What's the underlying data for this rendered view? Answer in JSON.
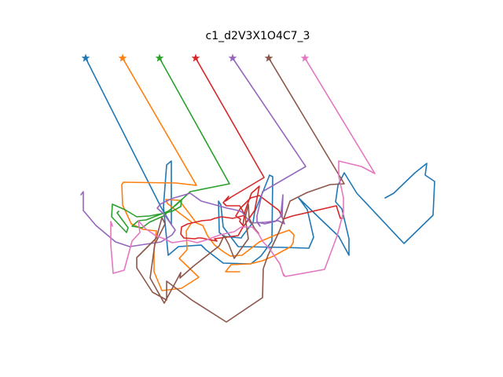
{
  "chart_data": {
    "type": "line",
    "title": "c1_d2V3X1O4C7_3",
    "xlabel": "",
    "ylabel": "",
    "axes_visible": false,
    "grid": false,
    "legend": "none",
    "start_marker": "star",
    "series": [
      {
        "color": "#1f77b4",
        "points": [
          [
            109,
            74
          ],
          [
            205,
            264
          ],
          [
            218,
            286
          ],
          [
            218,
            205
          ],
          [
            212,
            210
          ],
          [
            208,
            263
          ],
          [
            214,
            325
          ],
          [
            227,
            314
          ],
          [
            256,
            312
          ],
          [
            262,
            318
          ],
          [
            284,
            335
          ],
          [
            319,
            336
          ],
          [
            332,
            326
          ],
          [
            335,
            322
          ],
          [
            346,
            307
          ],
          [
            347,
            225
          ],
          [
            343,
            223
          ],
          [
            333,
            248
          ],
          [
            324,
            270
          ],
          [
            322,
            283
          ],
          [
            308,
            301
          ],
          [
            307,
            303
          ],
          [
            285,
            301
          ],
          [
            279,
            296
          ],
          [
            278,
            256
          ],
          [
            281,
            261
          ],
          [
            284,
            289
          ],
          [
            303,
            314
          ],
          [
            361,
            315
          ],
          [
            393,
            316
          ],
          [
            399,
            302
          ],
          [
            391,
            267
          ],
          [
            380,
            252
          ],
          [
            383,
            255
          ],
          [
            410,
            281
          ],
          [
            431,
            301
          ],
          [
            444,
            325
          ],
          [
            444,
            304
          ],
          [
            435,
            266
          ],
          [
            427,
            257
          ],
          [
            430,
            236
          ],
          [
            438,
            220
          ],
          [
            454,
            246
          ],
          [
            514,
            310
          ],
          [
            551,
            274
          ],
          [
            553,
            231
          ],
          [
            541,
            223
          ],
          [
            543,
            208
          ],
          [
            528,
            220
          ],
          [
            501,
            246
          ],
          [
            490,
            252
          ]
        ]
      },
      {
        "color": "#ff7f0e",
        "points": [
          [
            156,
            74
          ],
          [
            250,
            236
          ],
          [
            224,
            233
          ],
          [
            157,
            232
          ],
          [
            155,
            235
          ],
          [
            156,
            261
          ],
          [
            167,
            285
          ],
          [
            182,
            292
          ],
          [
            199,
            294
          ],
          [
            196,
            318
          ],
          [
            196,
            346
          ],
          [
            206,
            370
          ],
          [
            231,
            367
          ],
          [
            253,
            353
          ],
          [
            228,
            329
          ],
          [
            238,
            318
          ],
          [
            237,
            294
          ],
          [
            244,
            283
          ],
          [
            228,
            271
          ],
          [
            213,
            259
          ],
          [
            211,
            254
          ],
          [
            228,
            255
          ],
          [
            250,
            284
          ],
          [
            258,
            287
          ],
          [
            264,
            300
          ],
          [
            273,
            312
          ],
          [
            285,
            321
          ],
          [
            293,
            326
          ],
          [
            308,
            325
          ],
          [
            330,
            308
          ],
          [
            351,
            299
          ],
          [
            368,
            293
          ],
          [
            374,
            299
          ],
          [
            373,
            309
          ],
          [
            370,
            314
          ],
          [
            348,
            326
          ],
          [
            334,
            332
          ],
          [
            318,
            336
          ],
          [
            294,
            337
          ],
          [
            287,
            346
          ],
          [
            305,
            346
          ]
        ]
      },
      {
        "color": "#2ca02c",
        "points": [
          [
            203,
            74
          ],
          [
            292,
            234
          ],
          [
            242,
            244
          ],
          [
            224,
            261
          ],
          [
            214,
            269
          ],
          [
            186,
            280
          ],
          [
            176,
            281
          ],
          [
            168,
            288
          ],
          [
            181,
            290
          ],
          [
            190,
            283
          ],
          [
            208,
            275
          ],
          [
            231,
            254
          ],
          [
            230,
            263
          ],
          [
            219,
            269
          ],
          [
            206,
            272
          ],
          [
            190,
            275
          ],
          [
            174,
            276
          ],
          [
            159,
            267
          ],
          [
            143,
            260
          ],
          [
            142,
            276
          ],
          [
            161,
            296
          ],
          [
            163,
            290
          ],
          [
            149,
            271
          ],
          [
            151,
            269
          ]
        ]
      },
      {
        "color": "#d62728",
        "points": [
          [
            249,
            74
          ],
          [
            336,
            226
          ],
          [
            294,
            251
          ],
          [
            287,
            256
          ],
          [
            291,
            250
          ],
          [
            284,
            258
          ],
          [
            288,
            262
          ],
          [
            305,
            262
          ],
          [
            312,
            274
          ],
          [
            296,
            278
          ],
          [
            282,
            276
          ],
          [
            273,
            278
          ],
          [
            268,
            280
          ],
          [
            257,
            281
          ],
          [
            239,
            285
          ],
          [
            231,
            289
          ],
          [
            230,
            298
          ],
          [
            234,
            303
          ],
          [
            248,
            304
          ],
          [
            252,
            303
          ],
          [
            256,
            303
          ],
          [
            276,
            307
          ],
          [
            273,
            304
          ],
          [
            303,
            300
          ],
          [
            308,
            291
          ],
          [
            324,
            268
          ],
          [
            330,
            237
          ],
          [
            320,
            246
          ],
          [
            312,
            268
          ],
          [
            309,
            287
          ],
          [
            305,
            282
          ],
          [
            306,
            279
          ],
          [
            300,
            275
          ],
          [
            306,
            265
          ],
          [
            319,
            252
          ],
          [
            330,
            249
          ],
          [
            355,
            268
          ],
          [
            360,
            279
          ],
          [
            372,
            275
          ],
          [
            428,
            262
          ],
          [
            433,
            278
          ],
          [
            436,
            278
          ]
        ]
      },
      {
        "color": "#9467bd",
        "points": [
          [
            296,
            74
          ],
          [
            389,
            212
          ],
          [
            334,
            244
          ],
          [
            327,
            275
          ],
          [
            327,
            283
          ],
          [
            331,
            288
          ],
          [
            328,
            283
          ],
          [
            337,
            285
          ],
          [
            350,
            282
          ],
          [
            357,
            276
          ],
          [
            360,
            248
          ],
          [
            359,
            276
          ],
          [
            362,
            285
          ],
          [
            354,
            281
          ],
          [
            337,
            283
          ],
          [
            319,
            284
          ],
          [
            308,
            270
          ],
          [
            303,
            268
          ],
          [
            289,
            265
          ],
          [
            278,
            262
          ],
          [
            256,
            256
          ],
          [
            242,
            246
          ],
          [
            218,
            253
          ],
          [
            204,
            260
          ],
          [
            200,
            265
          ],
          [
            209,
            273
          ],
          [
            223,
            293
          ],
          [
            219,
            299
          ],
          [
            205,
            308
          ],
          [
            165,
            314
          ],
          [
            147,
            308
          ],
          [
            122,
            287
          ],
          [
            106,
            268
          ],
          [
            106,
            244
          ],
          [
            103,
            248
          ]
        ]
      },
      {
        "color": "#8c564b",
        "points": [
          [
            342,
            74
          ],
          [
            438,
            234
          ],
          [
            420,
            235
          ],
          [
            391,
            245
          ],
          [
            369,
            256
          ],
          [
            356,
            293
          ],
          [
            341,
            325
          ],
          [
            335,
            342
          ],
          [
            334,
            379
          ],
          [
            288,
            410
          ],
          [
            244,
            382
          ],
          [
            212,
            358
          ],
          [
            212,
            382
          ],
          [
            194,
            372
          ],
          [
            174,
            341
          ],
          [
            174,
            328
          ],
          [
            199,
            303
          ],
          [
            206,
            277
          ],
          [
            210,
            285
          ],
          [
            197,
            311
          ],
          [
            191,
            354
          ],
          [
            209,
            386
          ],
          [
            230,
            347
          ],
          [
            229,
            354
          ],
          [
            246,
            339
          ],
          [
            279,
            313
          ],
          [
            285,
            300
          ],
          [
            291,
            311
          ],
          [
            298,
            329
          ],
          [
            316,
            304
          ],
          [
            312,
            277
          ],
          [
            316,
            260
          ],
          [
            317,
            278
          ],
          [
            324,
            291
          ],
          [
            329,
            297
          ]
        ]
      },
      {
        "color": "#e377c2",
        "points": [
          [
            388,
            74
          ],
          [
            477,
            221
          ],
          [
            460,
            212
          ],
          [
            431,
            205
          ],
          [
            431,
            224
          ],
          [
            437,
            252
          ],
          [
            437,
            270
          ],
          [
            429,
            300
          ],
          [
            413,
            343
          ],
          [
            363,
            352
          ],
          [
            360,
            348
          ],
          [
            361,
            351
          ],
          [
            356,
            336
          ],
          [
            344,
            318
          ],
          [
            334,
            307
          ],
          [
            329,
            298
          ],
          [
            321,
            289
          ],
          [
            307,
            289
          ],
          [
            298,
            295
          ],
          [
            280,
            299
          ],
          [
            264,
            305
          ],
          [
            251,
            309
          ],
          [
            239,
            306
          ],
          [
            219,
            309
          ],
          [
            209,
            304
          ],
          [
            198,
            300
          ],
          [
            185,
            291
          ],
          [
            176,
            281
          ],
          [
            178,
            296
          ],
          [
            168,
            307
          ],
          [
            158,
            344
          ],
          [
            144,
            348
          ],
          [
            141,
            312
          ],
          [
            141,
            282
          ],
          [
            143,
            288
          ]
        ]
      }
    ]
  }
}
